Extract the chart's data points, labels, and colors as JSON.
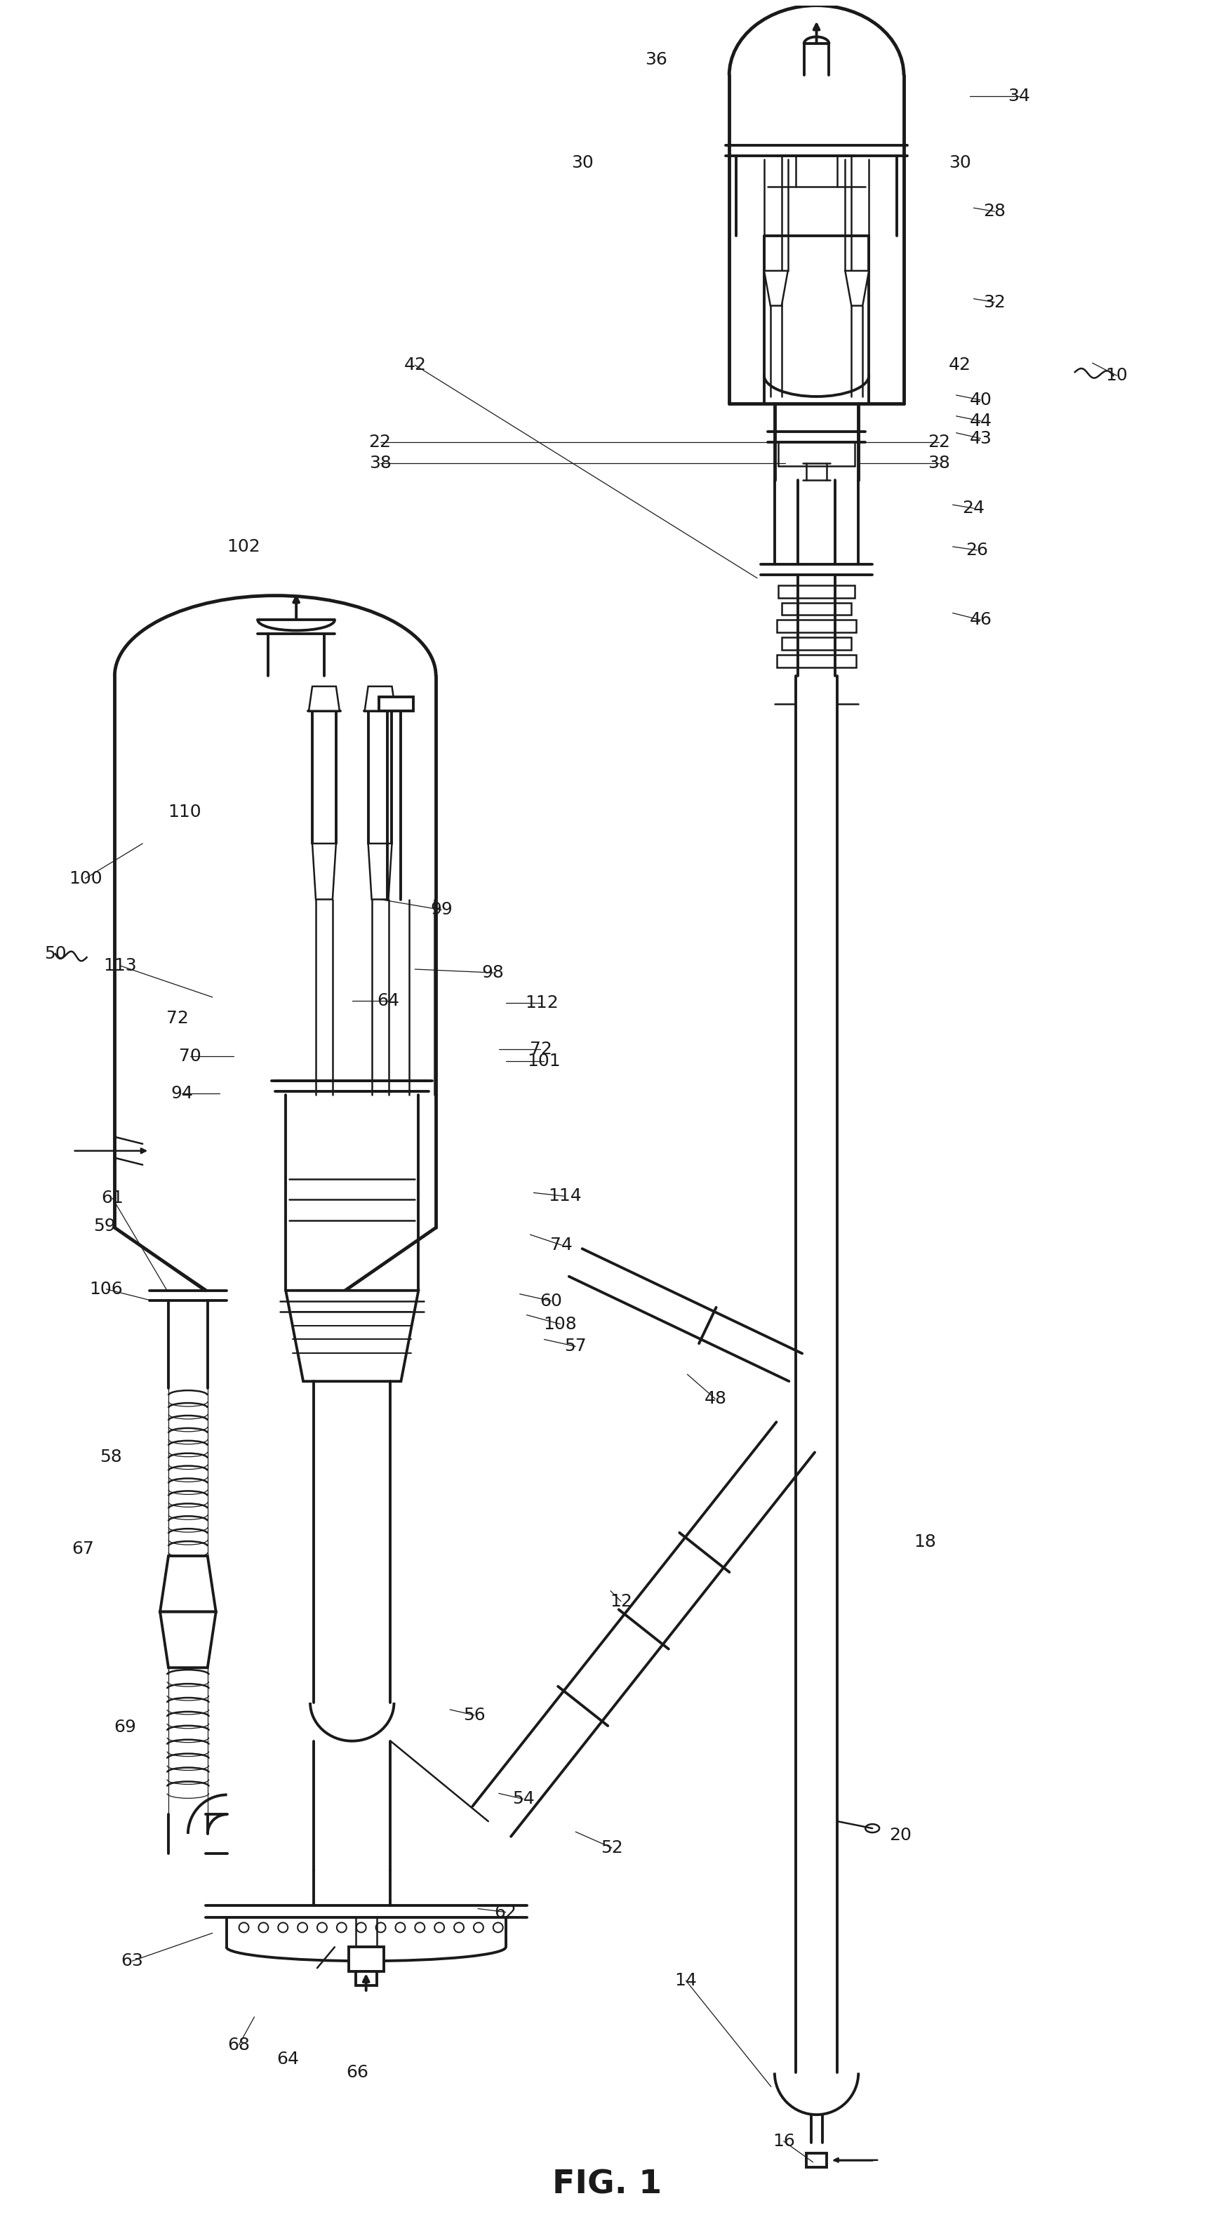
{
  "title": "FIG. 1",
  "title_fontsize": 32,
  "bg_color": "#ffffff",
  "line_color": "#1a1a1a",
  "fig_width": 17.31,
  "fig_height": 31.86
}
